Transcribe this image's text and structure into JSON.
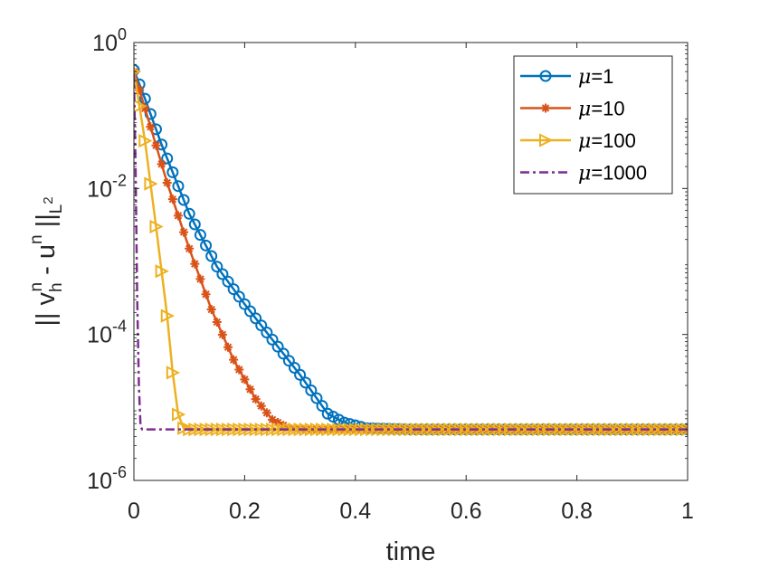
{
  "chart_data": {
    "type": "line",
    "title": "",
    "xlabel": "time",
    "ylabel": "|| v_h^n - u^n ||_{L^2}",
    "ylabel_parts": {
      "bars_left": "|| v",
      "sub_h": "h",
      "sup_n1": "n",
      "dash_u": " - u",
      "sup_n2": "n",
      "bars_right": " ||",
      "sub_L": "L",
      "sup_2": "2"
    },
    "x_scale": "linear",
    "y_scale": "log",
    "xlim": [
      0,
      1
    ],
    "ylim": [
      1e-06,
      1
    ],
    "x_ticks": [
      0,
      0.2,
      0.4,
      0.6,
      0.8,
      1
    ],
    "x_tick_labels": [
      "0",
      "0.2",
      "0.4",
      "0.6",
      "0.8",
      "1"
    ],
    "y_ticks": [
      {
        "value": 1,
        "base": "10",
        "exp": "0"
      },
      {
        "value": 0.01,
        "base": "10",
        "exp": "-2"
      },
      {
        "value": 0.0001,
        "base": "10",
        "exp": "-4"
      },
      {
        "value": 1e-06,
        "base": "10",
        "exp": "-6"
      }
    ],
    "grid": false,
    "legend_position": "top-right",
    "series": [
      {
        "name": "μ=1",
        "mu_symbol": "μ",
        "mu_value": "=1",
        "color": "#0072BD",
        "marker": "circle",
        "line_style": "solid",
        "marker_step": 0.01,
        "points": [
          [
            0,
            0.42
          ],
          [
            0.02,
            0.17
          ],
          [
            0.05,
            0.04
          ],
          [
            0.1,
            0.0045
          ],
          [
            0.15,
            0.00085
          ],
          [
            0.2,
            0.00026
          ],
          [
            0.25,
            8.5e-05
          ],
          [
            0.3,
            2.8e-05
          ],
          [
            0.35,
            8.2e-06
          ],
          [
            0.38,
            6.2e-06
          ],
          [
            0.42,
            5.2e-06
          ],
          [
            0.5,
            5e-06
          ],
          [
            1,
            5e-06
          ]
        ]
      },
      {
        "name": "μ=10",
        "mu_symbol": "μ",
        "mu_value": "=10",
        "color": "#D95319",
        "marker": "asterisk",
        "line_style": "solid",
        "marker_step": 0.01,
        "points": [
          [
            0,
            0.4
          ],
          [
            0.03,
            0.07
          ],
          [
            0.06,
            0.012
          ],
          [
            0.1,
            0.0015
          ],
          [
            0.14,
            0.00022
          ],
          [
            0.18,
            4.5e-05
          ],
          [
            0.22,
            1.3e-05
          ],
          [
            0.25,
            6.8e-06
          ],
          [
            0.28,
            5.2e-06
          ],
          [
            0.32,
            5e-06
          ],
          [
            1,
            5e-06
          ]
        ]
      },
      {
        "name": "μ=100",
        "mu_symbol": "μ",
        "mu_value": "=100",
        "color": "#EDB120",
        "marker": "triangle-right",
        "line_style": "solid",
        "marker_step": 0.01,
        "points": [
          [
            0,
            0.4
          ],
          [
            0.02,
            0.045
          ],
          [
            0.04,
            0.003
          ],
          [
            0.06,
            0.00018
          ],
          [
            0.07,
            3e-05
          ],
          [
            0.08,
            8e-06
          ],
          [
            0.09,
            5.2e-06
          ],
          [
            0.1,
            5e-06
          ],
          [
            1,
            5e-06
          ]
        ]
      },
      {
        "name": "μ=1000",
        "mu_symbol": "μ",
        "mu_value": "=1000",
        "color": "#7E2F8E",
        "marker": "none",
        "line_style": "dashdot",
        "marker_step": 0,
        "points": [
          [
            0,
            0.38
          ],
          [
            0.003,
            0.02
          ],
          [
            0.006,
            0.0003
          ],
          [
            0.009,
            2e-05
          ],
          [
            0.012,
            5.5e-06
          ],
          [
            0.015,
            5e-06
          ],
          [
            1,
            5e-06
          ]
        ]
      }
    ]
  }
}
